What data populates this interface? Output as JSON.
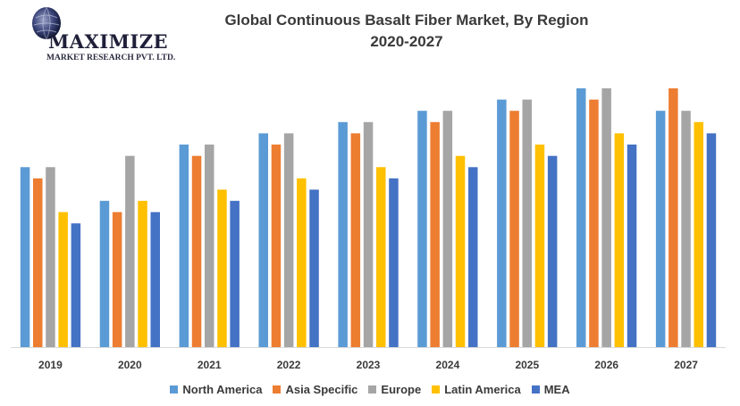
{
  "header": {
    "title_line1": "Global Continuous  Basalt Fiber Market, By Region",
    "title_line2": "2020-2027"
  },
  "logo": {
    "name": "MAXIMIZE",
    "subtitle": "MARKET RESEARCH PVT. LTD."
  },
  "colors": {
    "North America": "#5b9bd5",
    "Asia Specific": "#ed7d31",
    "Europe": "#a5a5a5",
    "Latin America": "#ffc000",
    "MEA": "#4472c4",
    "axis": "#d9d9d9",
    "text": "#3a3a3a"
  },
  "chart_data": {
    "type": "bar",
    "title": "Global Continuous  Basalt Fiber Market, By Region 2020-2027",
    "categories": [
      "2019",
      "2020",
      "2021",
      "2022",
      "2023",
      "2024",
      "2025",
      "2026",
      "2027"
    ],
    "series": [
      {
        "name": "North America",
        "values": [
          16,
          13,
          18,
          19,
          20,
          21,
          22,
          23,
          21
        ]
      },
      {
        "name": "Asia Specific",
        "values": [
          15,
          12,
          17,
          18,
          19,
          20,
          21,
          22,
          23
        ]
      },
      {
        "name": "Europe",
        "values": [
          16,
          17,
          18,
          19,
          20,
          21,
          22,
          23,
          21
        ]
      },
      {
        "name": "Latin America",
        "values": [
          12,
          13,
          14,
          15,
          16,
          17,
          18,
          19,
          20
        ]
      },
      {
        "name": "MEA",
        "values": [
          11,
          12,
          13,
          14,
          15,
          16,
          17,
          18,
          19
        ]
      }
    ],
    "xlabel": "",
    "ylabel": "",
    "ylim": [
      0,
      23
    ],
    "grid": false,
    "legend": "bottom"
  }
}
